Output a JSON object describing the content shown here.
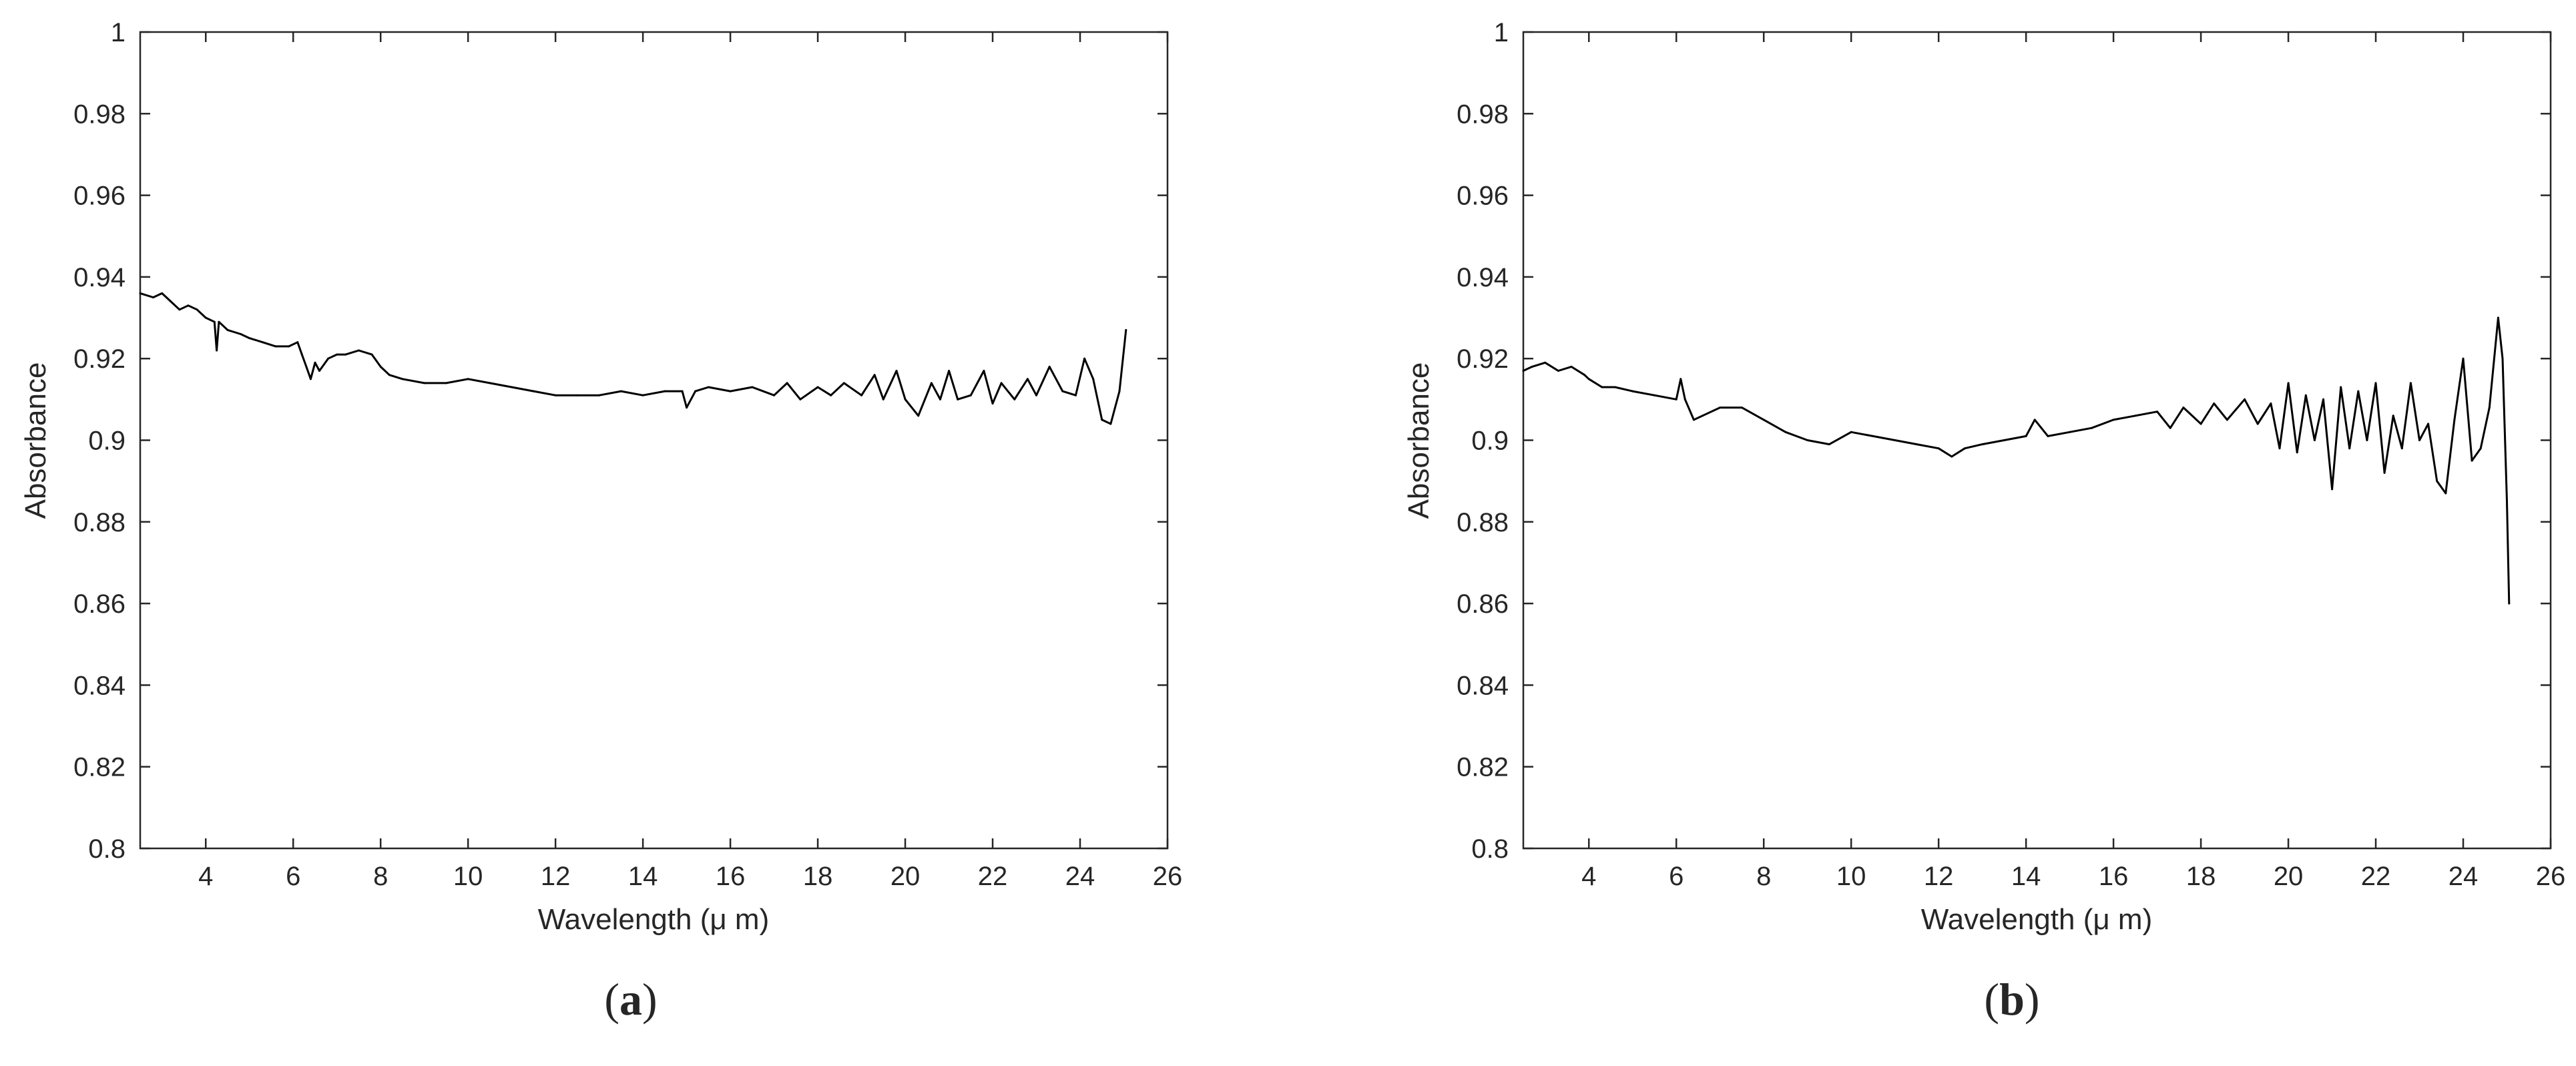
{
  "figure": {
    "panels": [
      {
        "caption_open": "(",
        "caption_letter": "a",
        "caption_close": ")"
      },
      {
        "caption_open": "(",
        "caption_letter": "b",
        "caption_close": ")"
      }
    ]
  },
  "colors": {
    "line": "#000000",
    "axis": "#262626",
    "background": "#ffffff"
  },
  "chart_data": [
    {
      "type": "line",
      "title": "",
      "xlabel": "Wavelength (μ m)",
      "ylabel": "Absorbance",
      "xlim": [
        2.5,
        26
      ],
      "ylim": [
        0.8,
        1.0
      ],
      "xticks": [
        4,
        6,
        8,
        10,
        12,
        14,
        16,
        18,
        20,
        22,
        24,
        26
      ],
      "yticks": [
        0.8,
        0.82,
        0.84,
        0.86,
        0.88,
        0.9,
        0.92,
        0.94,
        0.96,
        0.98,
        1
      ],
      "ytick_labels": [
        "0.8",
        "0.82",
        "0.84",
        "0.86",
        "0.88",
        "0.9",
        "0.92",
        "0.94",
        "0.96",
        "0.98",
        "1"
      ],
      "grid": false,
      "x": [
        2.5,
        2.8,
        3.0,
        3.2,
        3.4,
        3.6,
        3.8,
        4.0,
        4.2,
        4.25,
        4.3,
        4.5,
        4.8,
        5.0,
        5.3,
        5.6,
        5.9,
        6.1,
        6.2,
        6.3,
        6.4,
        6.5,
        6.6,
        6.8,
        7.0,
        7.2,
        7.5,
        7.8,
        8.0,
        8.2,
        8.5,
        9.0,
        9.5,
        10.0,
        10.5,
        11.0,
        11.5,
        12.0,
        12.5,
        13.0,
        13.5,
        14.0,
        14.5,
        14.9,
        15.0,
        15.2,
        15.5,
        16.0,
        16.5,
        17.0,
        17.3,
        17.6,
        18.0,
        18.3,
        18.6,
        19.0,
        19.3,
        19.5,
        19.8,
        20.0,
        20.3,
        20.6,
        20.8,
        21.0,
        21.2,
        21.5,
        21.8,
        22.0,
        22.2,
        22.5,
        22.8,
        23.0,
        23.3,
        23.6,
        23.9,
        24.1,
        24.3,
        24.5,
        24.7,
        24.9,
        25.05
      ],
      "y": [
        0.936,
        0.935,
        0.936,
        0.934,
        0.932,
        0.933,
        0.932,
        0.93,
        0.929,
        0.922,
        0.929,
        0.927,
        0.926,
        0.925,
        0.924,
        0.923,
        0.923,
        0.924,
        0.921,
        0.918,
        0.915,
        0.919,
        0.917,
        0.92,
        0.921,
        0.921,
        0.922,
        0.921,
        0.918,
        0.916,
        0.915,
        0.914,
        0.914,
        0.915,
        0.914,
        0.913,
        0.912,
        0.911,
        0.911,
        0.911,
        0.912,
        0.911,
        0.912,
        0.912,
        0.908,
        0.912,
        0.913,
        0.912,
        0.913,
        0.911,
        0.914,
        0.91,
        0.913,
        0.911,
        0.914,
        0.911,
        0.916,
        0.91,
        0.917,
        0.91,
        0.906,
        0.914,
        0.91,
        0.917,
        0.91,
        0.911,
        0.917,
        0.909,
        0.914,
        0.91,
        0.915,
        0.911,
        0.918,
        0.912,
        0.911,
        0.92,
        0.915,
        0.905,
        0.904,
        0.912,
        0.927
      ]
    },
    {
      "type": "line",
      "title": "",
      "xlabel": "Wavelength (μ m)",
      "ylabel": "Absorbance",
      "xlim": [
        2.5,
        26
      ],
      "ylim": [
        0.8,
        1.0
      ],
      "xticks": [
        4,
        6,
        8,
        10,
        12,
        14,
        16,
        18,
        20,
        22,
        24,
        26
      ],
      "yticks": [
        0.8,
        0.82,
        0.84,
        0.86,
        0.88,
        0.9,
        0.92,
        0.94,
        0.96,
        0.98,
        1
      ],
      "ytick_labels": [
        "0.8",
        "0.82",
        "0.84",
        "0.86",
        "0.88",
        "0.9",
        "0.92",
        "0.94",
        "0.96",
        "0.98",
        "1"
      ],
      "grid": false,
      "x": [
        2.5,
        2.7,
        3.0,
        3.3,
        3.6,
        3.9,
        4.0,
        4.3,
        4.6,
        5.0,
        5.5,
        6.0,
        6.1,
        6.2,
        6.4,
        6.6,
        7.0,
        7.5,
        8.0,
        8.5,
        9.0,
        9.5,
        10.0,
        10.5,
        11.0,
        11.5,
        12.0,
        12.3,
        12.6,
        13.0,
        13.5,
        14.0,
        14.2,
        14.5,
        15.0,
        15.5,
        16.0,
        16.5,
        17.0,
        17.3,
        17.6,
        18.0,
        18.3,
        18.6,
        19.0,
        19.3,
        19.6,
        19.8,
        20.0,
        20.2,
        20.4,
        20.6,
        20.8,
        21.0,
        21.2,
        21.4,
        21.6,
        21.8,
        22.0,
        22.2,
        22.4,
        22.6,
        22.8,
        23.0,
        23.2,
        23.4,
        23.6,
        23.8,
        24.0,
        24.2,
        24.4,
        24.6,
        24.8,
        24.9,
        25.0,
        25.05
      ],
      "y": [
        0.917,
        0.918,
        0.919,
        0.917,
        0.918,
        0.916,
        0.915,
        0.913,
        0.913,
        0.912,
        0.911,
        0.91,
        0.915,
        0.91,
        0.905,
        0.906,
        0.908,
        0.908,
        0.905,
        0.902,
        0.9,
        0.899,
        0.902,
        0.901,
        0.9,
        0.899,
        0.898,
        0.896,
        0.898,
        0.899,
        0.9,
        0.901,
        0.905,
        0.901,
        0.902,
        0.903,
        0.905,
        0.906,
        0.907,
        0.903,
        0.908,
        0.904,
        0.909,
        0.905,
        0.91,
        0.904,
        0.909,
        0.898,
        0.914,
        0.897,
        0.911,
        0.9,
        0.91,
        0.888,
        0.913,
        0.898,
        0.912,
        0.9,
        0.914,
        0.892,
        0.906,
        0.898,
        0.914,
        0.9,
        0.904,
        0.89,
        0.887,
        0.905,
        0.92,
        0.895,
        0.898,
        0.908,
        0.93,
        0.92,
        0.885,
        0.86
      ]
    }
  ]
}
